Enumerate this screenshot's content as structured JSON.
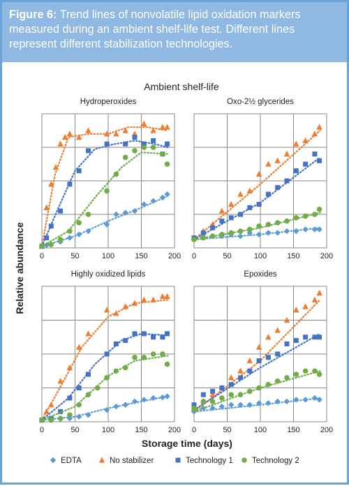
{
  "caption": {
    "label": "Figure 6:",
    "text": "Trend lines of nonvolatile lipid oxidation markers measured during an ambient shelf-life test. Different lines represent different stabilization technologies."
  },
  "colors": {
    "caption_bg": "#8fb8e2",
    "border": "#6aa3d8",
    "EDTA": "#5b9bd5",
    "No stabilizer": "#ed7d31",
    "Technology 1": "#4472c4",
    "Technology 2": "#70ad47"
  },
  "chart_data": {
    "title": "Ambient shelf-life",
    "xlabel": "Storage time (days)",
    "ylabel": "Relative abundance",
    "legend": {
      "placement": "bottom",
      "entries": [
        {
          "name": "EDTA",
          "marker": "diamond"
        },
        {
          "name": "No stabilizer",
          "marker": "triangle"
        },
        {
          "name": "Technology 1",
          "marker": "square"
        },
        {
          "name": "Technology 2",
          "marker": "circle"
        }
      ]
    },
    "panels": [
      {
        "type": "scatter",
        "title": "Hydroperoxides",
        "xlim": [
          0,
          200
        ],
        "xticks": [
          0,
          50,
          100,
          150,
          200
        ],
        "ylim": [
          0,
          4
        ],
        "grid": true,
        "series": [
          {
            "name": "EDTA",
            "x": [
              0,
              7,
              14,
              28,
              42,
              56,
              70,
              98,
              112,
              126,
              140,
              154,
              168,
              182,
              189
            ],
            "y": [
              0.05,
              0.08,
              0.1,
              0.18,
              0.3,
              0.4,
              0.5,
              0.7,
              1.0,
              1.05,
              1.1,
              1.3,
              1.4,
              1.5,
              1.6
            ],
            "trend": [
              [
                0,
                0.05
              ],
              [
                50,
                0.35
              ],
              [
                100,
                0.8
              ],
              [
                150,
                1.2
              ],
              [
                190,
                1.55
              ]
            ]
          },
          {
            "name": "No stabilizer",
            "x": [
              0,
              7,
              14,
              21,
              28,
              35,
              42,
              56,
              70,
              98,
              112,
              126,
              140,
              154,
              168,
              182,
              189
            ],
            "y": [
              0.05,
              1.2,
              1.9,
              2.4,
              3.1,
              3.3,
              3.4,
              3.3,
              3.5,
              3.4,
              3.4,
              3.5,
              3.4,
              3.7,
              3.5,
              3.6,
              3.6
            ],
            "trend": [
              [
                0,
                0.05
              ],
              [
                20,
                2.2
              ],
              [
                40,
                3.3
              ],
              [
                70,
                3.4
              ],
              [
                100,
                3.4
              ],
              [
                130,
                3.6
              ],
              [
                160,
                3.6
              ],
              [
                190,
                3.5
              ]
            ]
          },
          {
            "name": "Technology 1",
            "x": [
              0,
              7,
              14,
              28,
              42,
              56,
              70,
              98,
              126,
              140,
              154,
              168,
              182,
              189
            ],
            "y": [
              0.05,
              0.3,
              0.65,
              1.1,
              1.9,
              2.3,
              2.9,
              3.1,
              3.1,
              3.3,
              3.1,
              3.2,
              2.8,
              3.1
            ],
            "trend": [
              [
                0,
                0.05
              ],
              [
                25,
                1.2
              ],
              [
                50,
                2.3
              ],
              [
                80,
                2.95
              ],
              [
                110,
                3.1
              ],
              [
                140,
                3.2
              ],
              [
                170,
                3.1
              ],
              [
                190,
                3.0
              ]
            ]
          },
          {
            "name": "Technology 2",
            "x": [
              0,
              14,
              28,
              42,
              56,
              70,
              98,
              112,
              126,
              140,
              154,
              168,
              182,
              189
            ],
            "y": [
              0.05,
              0.1,
              0.25,
              0.5,
              0.75,
              1.0,
              1.7,
              2.2,
              2.7,
              2.9,
              3.0,
              3.0,
              2.8,
              2.5
            ],
            "trend": [
              [
                0,
                0.05
              ],
              [
                40,
                0.5
              ],
              [
                80,
                1.5
              ],
              [
                120,
                2.4
              ],
              [
                150,
                2.85
              ],
              [
                190,
                2.8
              ]
            ]
          }
        ]
      },
      {
        "type": "scatter",
        "title": "Oxo-2½ glycerides",
        "xlim": [
          0,
          200
        ],
        "xticks": [
          0,
          50,
          100,
          150,
          200
        ],
        "ylim": [
          0,
          4
        ],
        "grid": true,
        "series": [
          {
            "name": "EDTA",
            "x": [
              0,
              14,
              28,
              42,
              56,
              70,
              84,
              98,
              112,
              126,
              140,
              154,
              168,
              182,
              189
            ],
            "y": [
              0.25,
              0.3,
              0.35,
              0.35,
              0.4,
              0.35,
              0.45,
              0.4,
              0.45,
              0.45,
              0.5,
              0.5,
              0.55,
              0.55,
              0.55
            ],
            "trend": [
              [
                0,
                0.25
              ],
              [
                100,
                0.4
              ],
              [
                190,
                0.6
              ]
            ]
          },
          {
            "name": "No stabilizer",
            "x": [
              0,
              14,
              28,
              42,
              56,
              70,
              84,
              98,
              112,
              126,
              140,
              154,
              168,
              182,
              189
            ],
            "y": [
              0.3,
              0.5,
              0.7,
              1.1,
              1.3,
              1.6,
              1.7,
              2.2,
              2.5,
              2.6,
              2.8,
              3.1,
              3.2,
              3.4,
              3.6
            ],
            "trend": [
              [
                0,
                0.25
              ],
              [
                100,
                1.9
              ],
              [
                190,
                3.5
              ]
            ]
          },
          {
            "name": "Technology 1",
            "x": [
              0,
              14,
              28,
              42,
              56,
              70,
              84,
              98,
              112,
              126,
              140,
              154,
              168,
              182,
              189
            ],
            "y": [
              0.3,
              0.45,
              0.6,
              0.8,
              0.9,
              1.0,
              1.2,
              1.3,
              1.6,
              1.8,
              2.0,
              2.3,
              2.5,
              2.8,
              2.6
            ],
            "trend": [
              [
                0,
                0.25
              ],
              [
                100,
                1.35
              ],
              [
                190,
                2.7
              ]
            ]
          },
          {
            "name": "Technology 2",
            "x": [
              0,
              14,
              28,
              42,
              56,
              70,
              84,
              98,
              112,
              126,
              140,
              154,
              168,
              182,
              189
            ],
            "y": [
              0.25,
              0.3,
              0.35,
              0.4,
              0.45,
              0.5,
              0.55,
              0.65,
              0.7,
              0.75,
              0.8,
              0.9,
              0.95,
              1.0,
              1.15
            ],
            "trend": [
              [
                0,
                0.25
              ],
              [
                100,
                0.6
              ],
              [
                190,
                1.05
              ]
            ]
          }
        ]
      },
      {
        "type": "scatter",
        "title": "Highly oxidized lipids",
        "xlim": [
          0,
          200
        ],
        "xticks": [
          0,
          50,
          100,
          150,
          200
        ],
        "ylim": [
          0,
          4
        ],
        "grid": true,
        "series": [
          {
            "name": "EDTA",
            "x": [
              0,
              14,
              28,
              42,
              56,
              70,
              98,
              112,
              126,
              140,
              154,
              168,
              182,
              189
            ],
            "y": [
              0.05,
              0.05,
              0.08,
              0.1,
              0.15,
              0.2,
              0.35,
              0.45,
              0.5,
              0.6,
              0.65,
              0.7,
              0.72,
              0.75
            ],
            "trend": [
              [
                0,
                0.05
              ],
              [
                50,
                0.15
              ],
              [
                100,
                0.4
              ],
              [
                150,
                0.6
              ],
              [
                190,
                0.75
              ]
            ]
          },
          {
            "name": "No stabilizer",
            "x": [
              0,
              7,
              14,
              28,
              42,
              56,
              70,
              98,
              112,
              126,
              140,
              154,
              168,
              182,
              189
            ],
            "y": [
              0.05,
              0.3,
              0.5,
              1.2,
              1.6,
              2.2,
              2.6,
              3.3,
              3.2,
              3.4,
              3.5,
              3.6,
              3.6,
              3.7,
              3.7
            ],
            "trend": [
              [
                0,
                0.05
              ],
              [
                30,
                1.1
              ],
              [
                60,
                2.2
              ],
              [
                100,
                3.1
              ],
              [
                140,
                3.5
              ],
              [
                190,
                3.6
              ]
            ]
          },
          {
            "name": "Technology 1",
            "x": [
              0,
              14,
              28,
              42,
              56,
              70,
              98,
              112,
              126,
              140,
              154,
              168,
              182,
              189
            ],
            "y": [
              0.05,
              0.1,
              0.3,
              0.7,
              1.0,
              1.4,
              2.0,
              2.3,
              2.4,
              2.6,
              2.6,
              2.5,
              2.5,
              2.6
            ],
            "trend": [
              [
                0,
                0.05
              ],
              [
                40,
                0.7
              ],
              [
                80,
                1.7
              ],
              [
                120,
                2.4
              ],
              [
                150,
                2.6
              ],
              [
                190,
                2.55
              ]
            ]
          },
          {
            "name": "Technology 2",
            "x": [
              0,
              14,
              28,
              42,
              56,
              70,
              84,
              98,
              112,
              126,
              140,
              154,
              168,
              182,
              189
            ],
            "y": [
              0.05,
              0.05,
              0.1,
              0.2,
              0.5,
              0.8,
              1.0,
              1.3,
              1.5,
              1.6,
              1.9,
              1.9,
              2.0,
              2.0,
              1.7
            ],
            "trend": [
              [
                0,
                0.05
              ],
              [
                50,
                0.45
              ],
              [
                100,
                1.35
              ],
              [
                140,
                1.8
              ],
              [
                190,
                1.95
              ]
            ]
          }
        ]
      },
      {
        "type": "scatter",
        "title": "Epoxides",
        "xlim": [
          0,
          200
        ],
        "xticks": [
          0,
          50,
          100,
          150,
          200
        ],
        "ylim": [
          0,
          4
        ],
        "grid": true,
        "series": [
          {
            "name": "EDTA",
            "x": [
              0,
              14,
              28,
              42,
              56,
              70,
              84,
              98,
              112,
              126,
              140,
              154,
              168,
              182,
              189
            ],
            "y": [
              0.3,
              0.4,
              0.4,
              0.45,
              0.5,
              0.5,
              0.5,
              0.55,
              0.55,
              0.6,
              0.6,
              0.65,
              0.65,
              0.7,
              0.65
            ],
            "trend": [
              [
                0,
                0.3
              ],
              [
                100,
                0.5
              ],
              [
                190,
                0.7
              ]
            ]
          },
          {
            "name": "No stabilizer",
            "x": [
              0,
              14,
              28,
              42,
              56,
              70,
              84,
              98,
              112,
              126,
              140,
              154,
              168,
              182,
              189
            ],
            "y": [
              0.4,
              0.6,
              0.8,
              1.0,
              1.3,
              1.5,
              1.8,
              2.2,
              2.5,
              2.7,
              3.0,
              3.3,
              3.4,
              3.6,
              3.8
            ],
            "trend": [
              [
                0,
                0.3
              ],
              [
                100,
                1.8
              ],
              [
                190,
                3.6
              ]
            ]
          },
          {
            "name": "Technology 1",
            "x": [
              0,
              14,
              28,
              42,
              56,
              70,
              84,
              98,
              112,
              126,
              140,
              154,
              168,
              182,
              189
            ],
            "y": [
              0.5,
              0.8,
              0.9,
              1.0,
              1.1,
              1.3,
              1.5,
              1.8,
              1.9,
              2.0,
              2.3,
              2.4,
              2.5,
              2.5,
              2.5
            ],
            "trend": [
              [
                0,
                0.35
              ],
              [
                100,
                1.6
              ],
              [
                190,
                2.6
              ]
            ]
          },
          {
            "name": "Technology 2",
            "x": [
              0,
              14,
              28,
              42,
              56,
              70,
              84,
              98,
              112,
              126,
              140,
              154,
              168,
              182,
              189
            ],
            "y": [
              0.4,
              0.6,
              0.6,
              0.7,
              0.8,
              0.8,
              0.9,
              1.0,
              1.1,
              1.2,
              1.3,
              1.4,
              1.5,
              1.5,
              1.4
            ],
            "trend": [
              [
                0,
                0.3
              ],
              [
                100,
                1.0
              ],
              [
                190,
                1.5
              ]
            ]
          }
        ]
      }
    ]
  }
}
